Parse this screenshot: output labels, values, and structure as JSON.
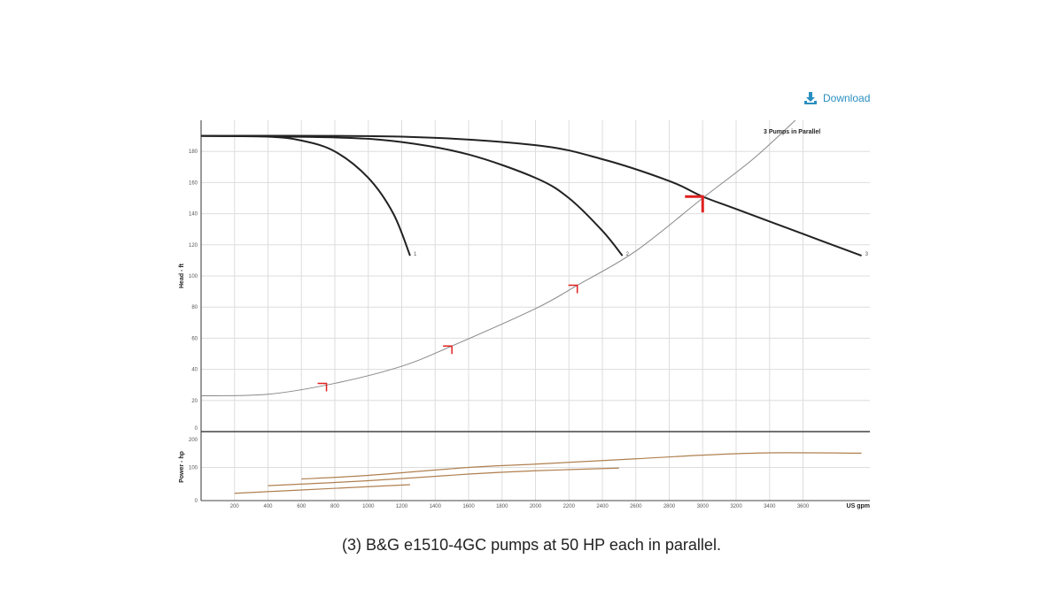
{
  "download_label": "Download",
  "caption": "(3) B&G e1510-4GC pumps at 50 HP each in parallel.",
  "chart_data": [
    {
      "type": "line",
      "ylabel": "Head - ft",
      "xlim": [
        0,
        4000
      ],
      "ylim": [
        0,
        200
      ],
      "xticks": [
        200,
        400,
        600,
        800,
        1000,
        1200,
        1400,
        1600,
        1800,
        2000,
        2200,
        2400,
        2600,
        2800,
        3000,
        3200,
        3400,
        3600
      ],
      "yticks": [
        0,
        20,
        40,
        60,
        80,
        100,
        120,
        140,
        160,
        180
      ],
      "grid": true,
      "series": [
        {
          "name": "1",
          "color": "#222222",
          "points": [
            [
              0,
              190
            ],
            [
              400,
              189.5
            ],
            [
              600,
              187
            ],
            [
              800,
              180
            ],
            [
              1000,
              163
            ],
            [
              1150,
              140
            ],
            [
              1250,
              113
            ]
          ]
        },
        {
          "name": "2",
          "color": "#222222",
          "points": [
            [
              0,
              190
            ],
            [
              800,
              189
            ],
            [
              1200,
              186
            ],
            [
              1600,
              178
            ],
            [
              2000,
              163
            ],
            [
              2200,
              150
            ],
            [
              2400,
              129
            ],
            [
              2520,
              113
            ]
          ]
        },
        {
          "name": "3",
          "color": "#222222",
          "points": [
            [
              0,
              190
            ],
            [
              1200,
              189.5
            ],
            [
              2000,
              184
            ],
            [
              2400,
              175
            ],
            [
              2800,
              161
            ],
            [
              3000,
              151
            ],
            [
              3200,
              143
            ],
            [
              3600,
              127
            ],
            [
              3950,
              113
            ]
          ]
        },
        {
          "name": "3 Pumps in Parallel",
          "color": "#888888",
          "points": [
            [
              0,
              23
            ],
            [
              400,
              24
            ],
            [
              800,
              31
            ],
            [
              1200,
              42
            ],
            [
              1500,
              55
            ],
            [
              2000,
              79
            ],
            [
              2250,
              94
            ],
            [
              2600,
              116
            ],
            [
              3000,
              150
            ],
            [
              3300,
              175
            ],
            [
              3554,
              200
            ]
          ]
        }
      ],
      "markers": {
        "color": "#e02020",
        "points": [
          [
            750,
            31
          ],
          [
            1500,
            55
          ],
          [
            2250,
            94
          ],
          [
            3000,
            151
          ]
        ]
      }
    },
    {
      "type": "line",
      "ylabel": "Power - hp",
      "xlabel": "US gpm",
      "xlim": [
        0,
        4000
      ],
      "ylim": [
        0,
        200
      ],
      "yticks": [
        0,
        100,
        200
      ],
      "grid": true,
      "series": [
        {
          "color": "#b08050",
          "points": [
            [
              200,
              22
            ],
            [
              600,
              32
            ],
            [
              1000,
              42
            ],
            [
              1250,
              48
            ]
          ]
        },
        {
          "color": "#b08050",
          "points": [
            [
              400,
              45
            ],
            [
              1000,
              60
            ],
            [
              1600,
              80
            ],
            [
              2000,
              90
            ],
            [
              2500,
              98
            ]
          ]
        },
        {
          "color": "#b08050",
          "points": [
            [
              600,
              65
            ],
            [
              1000,
              76
            ],
            [
              1600,
              100
            ],
            [
              2000,
              110
            ],
            [
              2600,
              126
            ],
            [
              3000,
              137
            ],
            [
              3400,
              144
            ],
            [
              3950,
              143
            ]
          ]
        }
      ]
    }
  ]
}
